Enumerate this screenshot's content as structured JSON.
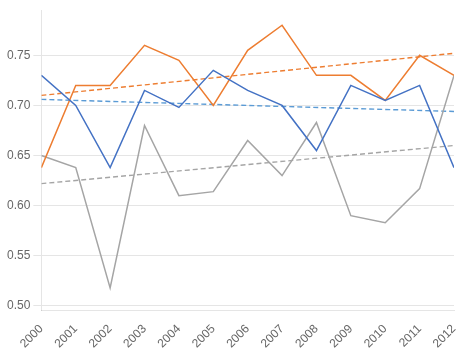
{
  "chart_data": {
    "type": "line",
    "x": [
      2000,
      2001,
      2002,
      2003,
      2004,
      2005,
      2006,
      2007,
      2008,
      2009,
      2010,
      2011,
      2012
    ],
    "xlim": [
      2000,
      2012
    ],
    "xticks": [
      2000,
      2001,
      2002,
      2003,
      2004,
      2005,
      2006,
      2007,
      2008,
      2009,
      2010,
      2011,
      2012
    ],
    "ylim": [
      0.495,
      0.795
    ],
    "yticks": [
      {
        "value": 0.5,
        "label": "0.50"
      },
      0.55,
      {
        "value": 0.6,
        "label": "0.60"
      },
      0.65,
      {
        "value": 0.7,
        "label": "0.70"
      },
      0.75
    ],
    "grid": "y",
    "series": [
      {
        "color": "#4472C4",
        "line_style": "solid",
        "values": [
          0.73,
          0.7,
          0.638,
          0.715,
          0.698,
          0.735,
          0.715,
          0.7,
          0.655,
          0.72,
          0.705,
          0.72,
          0.638
        ]
      },
      {
        "color": "#ED7D31",
        "line_style": "solid",
        "values": [
          0.638,
          0.72,
          0.72,
          0.76,
          0.745,
          0.7,
          0.755,
          0.78,
          0.73,
          0.73,
          0.705,
          0.75,
          0.73
        ]
      },
      {
        "color": "#A5A5A5",
        "line_style": "solid",
        "values": [
          0.65,
          0.638,
          0.518,
          0.68,
          0.61,
          0.614,
          0.665,
          0.63,
          0.683,
          0.59,
          0.583,
          0.617,
          0.73
        ]
      },
      {
        "color": "#5B9BD5",
        "line_style": "dashed",
        "x": [
          2000,
          2012
        ],
        "values": [
          0.706,
          0.694
        ]
      },
      {
        "color": "#ED7D31",
        "line_style": "dashed",
        "x": [
          2000,
          2012
        ],
        "values": [
          0.71,
          0.752
        ]
      },
      {
        "color": "#A5A5A5",
        "line_style": "dashed",
        "x": [
          2000,
          2012
        ],
        "values": [
          0.622,
          0.66
        ]
      }
    ]
  }
}
